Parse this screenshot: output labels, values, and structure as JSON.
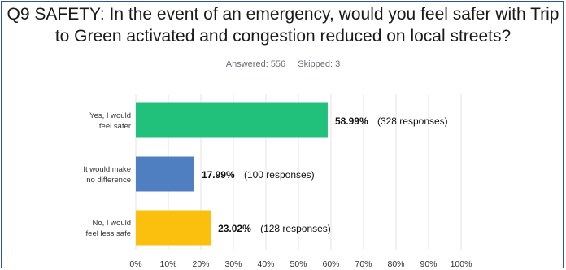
{
  "title": "Q9 SAFETY: In the event of an emergency, would you feel safer with Trip to Green activated and congestion reduced on local streets?",
  "stats": {
    "answered": "Answered: 556",
    "skipped": "Skipped: 3"
  },
  "chart_data": {
    "type": "bar",
    "orientation": "horizontal",
    "categories": [
      [
        "Yes, I would",
        "feel safer"
      ],
      [
        "It would make",
        "no difference"
      ],
      [
        "No, I would",
        "feel less safe"
      ]
    ],
    "values": [
      58.99,
      17.99,
      23.02
    ],
    "value_labels": [
      "58.99%",
      "17.99%",
      "23.02%"
    ],
    "response_labels": [
      "(328 responses)",
      "(100 responses)",
      "(128 responses)"
    ],
    "colors": [
      "#21c07b",
      "#4f7fc0",
      "#fbbf0d"
    ],
    "xlim": [
      0,
      100
    ],
    "xticks": [
      "0%",
      "10%",
      "20%",
      "30%",
      "40%",
      "50%",
      "60%",
      "70%",
      "80%",
      "90%",
      "100%"
    ],
    "grid": true
  }
}
